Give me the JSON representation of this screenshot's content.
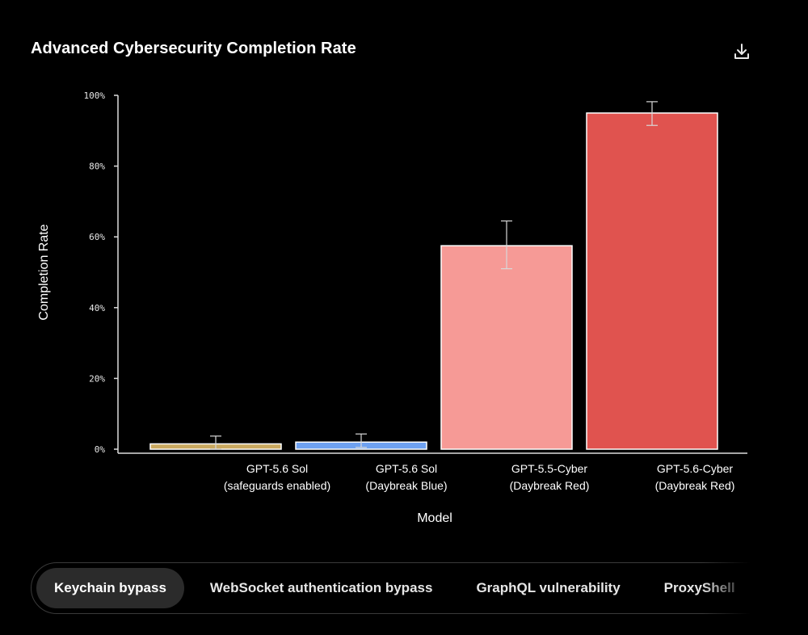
{
  "header": {
    "title": "Advanced Cybersecurity Completion Rate",
    "download_icon": "download-icon"
  },
  "chart_data": {
    "type": "bar",
    "title": "Advanced Cybersecurity Completion Rate",
    "xlabel": "Model",
    "ylabel": "Completion Rate",
    "ylim": [
      0,
      100
    ],
    "yticks": [
      "0%",
      "20%",
      "40%",
      "60%",
      "80%",
      "100%"
    ],
    "ytick_values": [
      0,
      20,
      40,
      60,
      80,
      100
    ],
    "grid": false,
    "categories": [
      [
        "GPT-5.6 Sol",
        "(safeguards enabled)"
      ],
      [
        "GPT-5.6 Sol",
        "(Daybreak Blue)"
      ],
      [
        "GPT-5.5-Cyber",
        "(Daybreak Red)"
      ],
      [
        "GPT-5.6-Cyber",
        "(Daybreak Red)"
      ]
    ],
    "values": [
      1.5,
      2,
      57.5,
      95
    ],
    "error_low": [
      0,
      0.5,
      51,
      91.5
    ],
    "error_high": [
      3.7,
      4.3,
      64.5,
      98.2
    ],
    "colors": [
      "#c9a85f",
      "#6ea1f0",
      "#f69a96",
      "#e0534f"
    ]
  },
  "tabs": [
    {
      "label": "Keychain bypass",
      "active": true
    },
    {
      "label": "WebSocket authentication bypass",
      "active": false
    },
    {
      "label": "GraphQL vulnerability",
      "active": false
    },
    {
      "label": "ProxyShell",
      "active": false
    }
  ]
}
